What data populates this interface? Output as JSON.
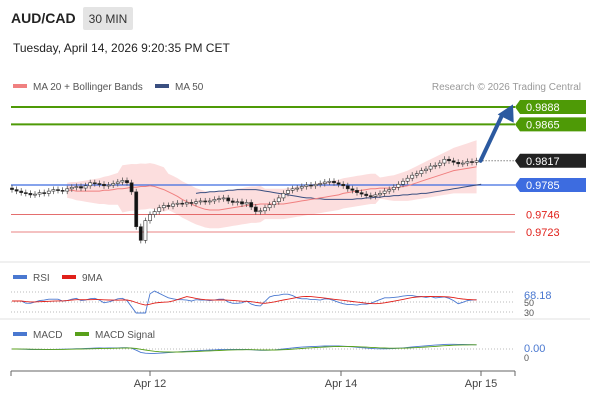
{
  "header": {
    "pair": "AUD/CAD",
    "timeframe": "30 MIN",
    "datetime": "Tuesday, April 14, 2026 9:20:35 PM CET"
  },
  "legend": {
    "ma20": "MA 20 + Bollinger Bands",
    "ma50": "MA 50",
    "source": "Research © 2026 Trading Central"
  },
  "colors": {
    "green": "#4e9a06",
    "blue": "#3d6ce0",
    "red": "#e05a5a",
    "arrow": "#2c5aa0",
    "ma20": "#f08080",
    "ma50": "#3a4f80",
    "band": "#fbd3d3",
    "macd": "#4a78d0",
    "signal": "#58a01a"
  },
  "chart_data": [
    {
      "type": "line",
      "name": "price",
      "ylim": [
        0.9686,
        0.9913
      ],
      "levels": [
        {
          "value": 0.9888,
          "label": "0.9888",
          "kind": "resistance"
        },
        {
          "value": 0.9865,
          "label": "0.9865",
          "kind": "resistance"
        },
        {
          "value": 0.9817,
          "label": "0.9817",
          "kind": "current"
        },
        {
          "value": 0.9785,
          "label": "0.9785",
          "kind": "pivot"
        },
        {
          "value": 0.9746,
          "label": "0.9746",
          "kind": "support"
        },
        {
          "value": 0.9723,
          "label": "0.9723",
          "kind": "support"
        }
      ],
      "close": [
        0.9779,
        0.9777,
        0.9775,
        0.9774,
        0.9772,
        0.9773,
        0.9775,
        0.9774,
        0.9777,
        0.9779,
        0.9778,
        0.9777,
        0.978,
        0.9782,
        0.9783,
        0.9781,
        0.9784,
        0.9788,
        0.9787,
        0.9786,
        0.9784,
        0.9785,
        0.9787,
        0.9789,
        0.9791,
        0.9788,
        0.9776,
        0.973,
        0.9712,
        0.9738,
        0.9746,
        0.975,
        0.9755,
        0.9758,
        0.9757,
        0.976,
        0.9761,
        0.976,
        0.9762,
        0.9761,
        0.9763,
        0.9764,
        0.9763,
        0.9764,
        0.9766,
        0.9767,
        0.9768,
        0.9764,
        0.9762,
        0.9763,
        0.976,
        0.9762,
        0.9756,
        0.975,
        0.9751,
        0.9755,
        0.9759,
        0.9763,
        0.9768,
        0.9774,
        0.9778,
        0.978,
        0.9781,
        0.9783,
        0.9785,
        0.9784,
        0.9786,
        0.9787,
        0.9789,
        0.979,
        0.9788,
        0.9786,
        0.9784,
        0.978,
        0.9778,
        0.9775,
        0.9773,
        0.9771,
        0.977,
        0.9772,
        0.9774,
        0.9777,
        0.9779,
        0.9782,
        0.9786,
        0.979,
        0.9794,
        0.9798,
        0.98,
        0.9804,
        0.9806,
        0.981,
        0.9811,
        0.9814,
        0.9819,
        0.9817,
        0.9815,
        0.9813,
        0.9814,
        0.9816,
        0.9815,
        0.9817
      ],
      "ma20": [
        0.9778,
        0.9778,
        0.9777,
        0.9777,
        0.9777,
        0.9777,
        0.9777,
        0.9777,
        0.9778,
        0.9778,
        0.9779,
        0.978,
        0.978,
        0.9781,
        0.9782,
        0.9782,
        0.9783,
        0.9783,
        0.9784,
        0.9783,
        0.9781,
        0.9779,
        0.9776,
        0.9773,
        0.977,
        0.9766,
        0.9763,
        0.976,
        0.9757,
        0.9755,
        0.9753,
        0.9752,
        0.9752,
        0.9752,
        0.9753,
        0.9754,
        0.9755,
        0.9756,
        0.9757,
        0.9758,
        0.9759,
        0.9759,
        0.976,
        0.976,
        0.976,
        0.976,
        0.976,
        0.976,
        0.9761,
        0.9762,
        0.9763,
        0.9764,
        0.9765,
        0.9766,
        0.9767,
        0.9768,
        0.9769,
        0.977,
        0.9771,
        0.9772,
        0.9774,
        0.9775,
        0.9776,
        0.9777,
        0.9778,
        0.9779,
        0.978,
        0.978,
        0.9781,
        0.9781,
        0.9781,
        0.9781,
        0.9782,
        0.9783,
        0.9784,
        0.9786,
        0.9788,
        0.979,
        0.9792,
        0.9794,
        0.9796,
        0.9798,
        0.98,
        0.9802,
        0.9804,
        0.9805,
        0.9806,
        0.9807,
        0.9808,
        0.9809
      ],
      "ma50": [
        0.9774,
        0.9775,
        0.9775,
        0.9776,
        0.9776,
        0.9777,
        0.9777,
        0.9778,
        0.9778,
        0.9779,
        0.9779,
        0.9779,
        0.9779,
        0.9779,
        0.9778,
        0.9777,
        0.9776,
        0.9775,
        0.9774,
        0.9773,
        0.9772,
        0.9771,
        0.977,
        0.9769,
        0.9768,
        0.9768,
        0.9767,
        0.9767,
        0.9766,
        0.9766,
        0.9766,
        0.9766,
        0.9766,
        0.9766,
        0.9766,
        0.9767,
        0.9767,
        0.9768,
        0.9768,
        0.9769,
        0.9769,
        0.977,
        0.977,
        0.9771,
        0.9771,
        0.9772,
        0.9772,
        0.9773,
        0.9773,
        0.9774,
        0.9774,
        0.9775,
        0.9776,
        0.9777,
        0.9778,
        0.9779,
        0.978,
        0.9781,
        0.9782,
        0.9783,
        0.9784,
        0.9785,
        0.9786
      ]
    },
    {
      "type": "line",
      "name": "rsi",
      "legend": [
        "RSI",
        "9MA"
      ],
      "levels": [
        70,
        50,
        30
      ],
      "tick_labels": [
        "50",
        "30"
      ],
      "last_label": "68.18",
      "ylim": [
        25,
        75
      ]
    },
    {
      "type": "line",
      "name": "macd",
      "legend": [
        "MACD",
        "MACD Signal"
      ],
      "levels": [
        0
      ],
      "tick_labels": [
        "0"
      ],
      "last_label": "0.00"
    },
    {
      "type": "axis",
      "x_ticks": [
        "Apr 12",
        "Apr 14",
        "Apr 15"
      ]
    }
  ]
}
